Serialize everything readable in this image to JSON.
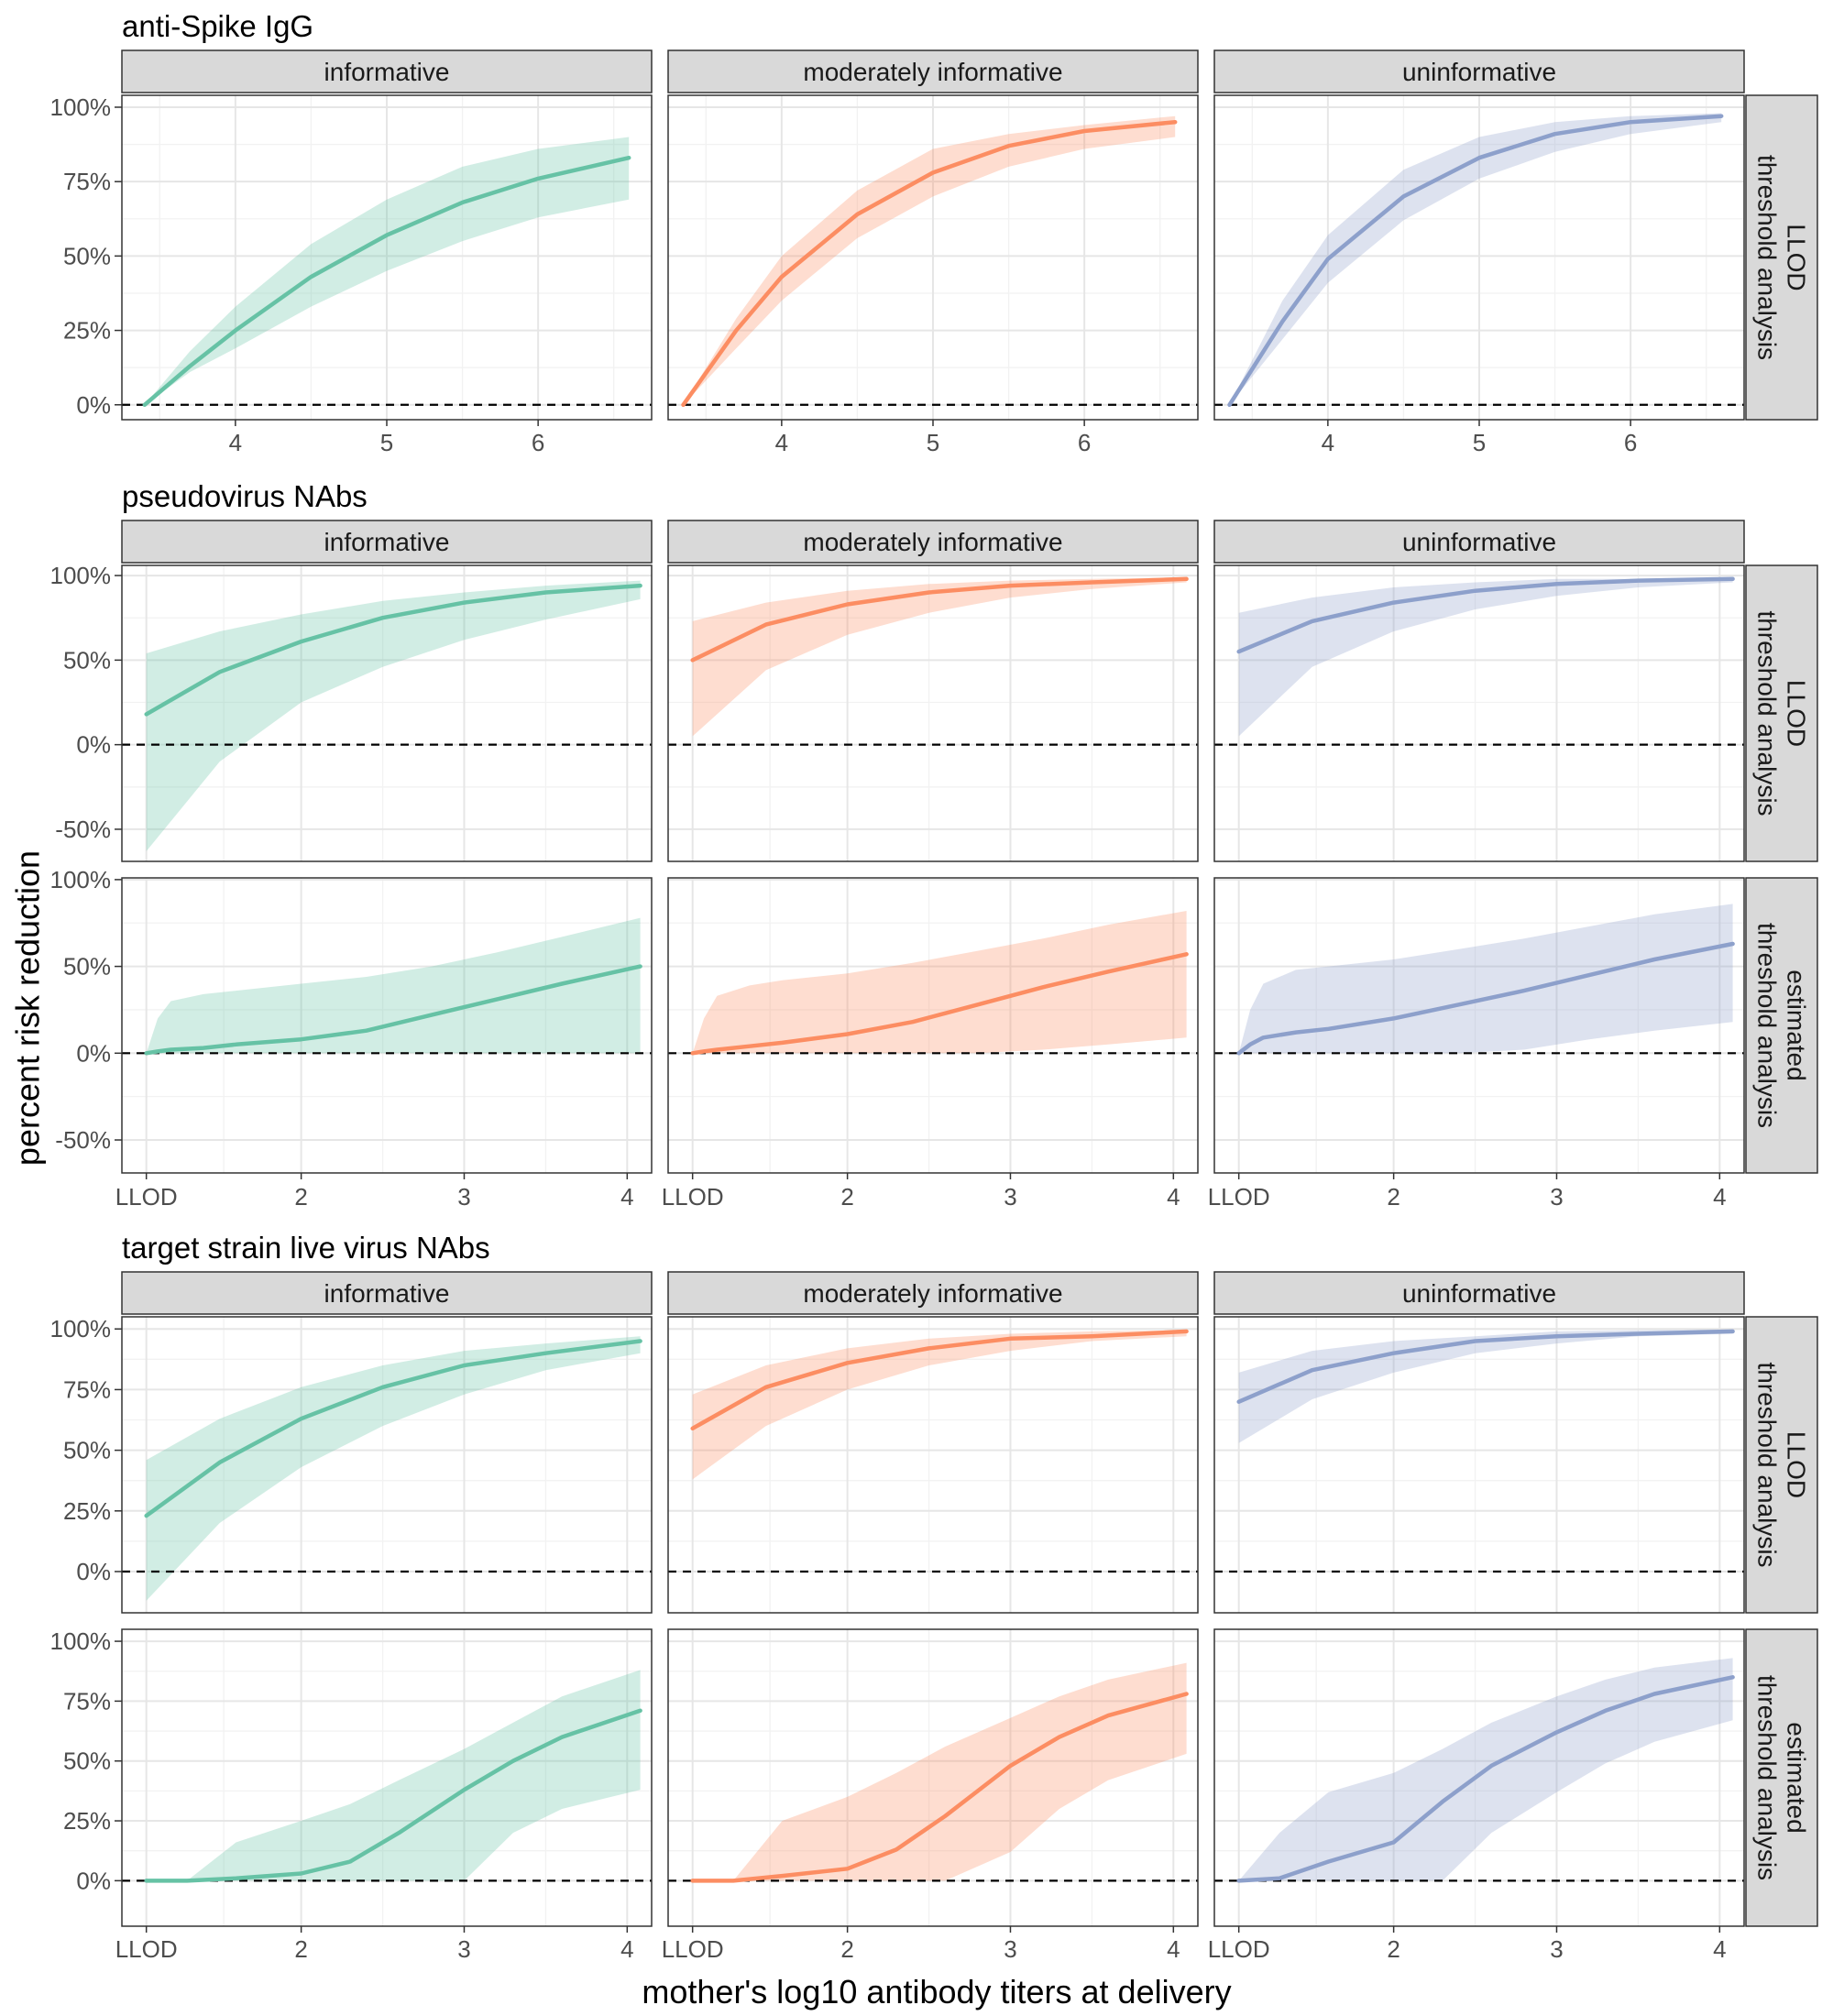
{
  "chart_data": {
    "type": "line",
    "xlabel": "mother's log10 antibody titers at delivery",
    "ylabel": "percent risk reduction",
    "column_labels": [
      "informative",
      "moderately informative",
      "uninformative"
    ],
    "colors": {
      "informative": "#66c2a5",
      "moderately informative": "#fc8d62",
      "uninformative": "#8da0cb"
    },
    "blocks": [
      {
        "title": "anti-Spike IgG",
        "xlim": [
          3.25,
          6.75
        ],
        "xticks": [
          {
            "v": 4,
            "label": "4"
          },
          {
            "v": 5,
            "label": "5"
          },
          {
            "v": 6,
            "label": "6"
          }
        ],
        "rows": [
          {
            "label": [
              "LLOD",
              "threshold analysis"
            ],
            "ylim": [
              -5,
              104
            ],
            "yticks": [
              {
                "v": 0,
                "label": "0%"
              },
              {
                "v": 25,
                "label": "25%"
              },
              {
                "v": 50,
                "label": "50%"
              },
              {
                "v": 75,
                "label": "75%"
              },
              {
                "v": 100,
                "label": "100%"
              }
            ],
            "panels": [
              {
                "x": [
                  3.4,
                  3.7,
                  4.0,
                  4.5,
                  5.0,
                  5.5,
                  6.0,
                  6.6
                ],
                "y": [
                  0,
                  13,
                  25,
                  43,
                  57,
                  68,
                  76,
                  83
                ],
                "lo": [
                  0,
                  11,
                  19,
                  33,
                  45,
                  55,
                  63,
                  69
                ],
                "hi": [
                  0,
                  18,
                  33,
                  54,
                  69,
                  80,
                  86,
                  90
                ]
              },
              {
                "x": [
                  3.35,
                  3.7,
                  4.0,
                  4.5,
                  5.0,
                  5.5,
                  6.0,
                  6.6
                ],
                "y": [
                  0,
                  25,
                  43,
                  64,
                  78,
                  87,
                  92,
                  95
                ],
                "lo": [
                  0,
                  19,
                  35,
                  56,
                  70,
                  80,
                  86,
                  90
                ],
                "hi": [
                  0,
                  29,
                  50,
                  72,
                  86,
                  91,
                  94,
                  97
                ]
              },
              {
                "x": [
                  3.35,
                  3.7,
                  4.0,
                  4.5,
                  5.0,
                  5.5,
                  6.0,
                  6.6
                ],
                "y": [
                  0,
                  28,
                  49,
                  70,
                  83,
                  91,
                  95,
                  97
                ],
                "lo": [
                  0,
                  22,
                  41,
                  62,
                  76,
                  85,
                  91,
                  95
                ],
                "hi": [
                  0,
                  35,
                  57,
                  79,
                  90,
                  95,
                  97,
                  98
                ]
              }
            ]
          }
        ]
      },
      {
        "title": "pseudovirus NAbs",
        "xlim": [
          0.9,
          4.15
        ],
        "xticks": [
          {
            "v": 1.05,
            "label": "LLOD"
          },
          {
            "v": 2,
            "label": "2"
          },
          {
            "v": 3,
            "label": "3"
          },
          {
            "v": 4,
            "label": "4"
          }
        ],
        "rows": [
          {
            "label": [
              "LLOD",
              "threshold analysis"
            ],
            "ylim": [
              -69,
              106
            ],
            "yticks": [
              {
                "v": -50,
                "label": "-50%"
              },
              {
                "v": 0,
                "label": "0%"
              },
              {
                "v": 50,
                "label": "50%"
              },
              {
                "v": 100,
                "label": "100%"
              }
            ],
            "panels": [
              {
                "x": [
                  1.05,
                  1.5,
                  2.0,
                  2.5,
                  3.0,
                  3.5,
                  4.08
                ],
                "y": [
                  18,
                  43,
                  61,
                  75,
                  84,
                  90,
                  94
                ],
                "lo": [
                  -63,
                  -10,
                  25,
                  46,
                  62,
                  74,
                  86
                ],
                "hi": [
                  54,
                  67,
                  77,
                  85,
                  90,
                  94,
                  97
                ]
              },
              {
                "x": [
                  1.05,
                  1.5,
                  2.0,
                  2.5,
                  3.0,
                  3.5,
                  4.08
                ],
                "y": [
                  50,
                  71,
                  83,
                  90,
                  94,
                  96,
                  98
                ],
                "lo": [
                  5,
                  44,
                  65,
                  78,
                  87,
                  92,
                  96
                ],
                "hi": [
                  73,
                  84,
                  91,
                  95,
                  97,
                  98,
                  99
                ]
              },
              {
                "x": [
                  1.05,
                  1.5,
                  2.0,
                  2.5,
                  3.0,
                  3.5,
                  4.08
                ],
                "y": [
                  55,
                  73,
                  84,
                  91,
                  95,
                  97,
                  98
                ],
                "lo": [
                  5,
                  46,
                  67,
                  80,
                  88,
                  93,
                  96
                ],
                "hi": [
                  78,
                  87,
                  93,
                  96,
                  98,
                  98,
                  99
                ]
              }
            ]
          },
          {
            "label": [
              "estimated",
              "threshold analysis"
            ],
            "ylim": [
              -69,
              101
            ],
            "yticks": [
              {
                "v": -50,
                "label": "-50%"
              },
              {
                "v": 0,
                "label": "0%"
              },
              {
                "v": 50,
                "label": "50%"
              },
              {
                "v": 100,
                "label": "100%"
              }
            ],
            "panels": [
              {
                "x": [
                  1.05,
                  1.12,
                  1.2,
                  1.4,
                  1.6,
                  2.0,
                  2.4,
                  2.8,
                  3.2,
                  3.6,
                  4.08
                ],
                "y": [
                  0,
                  1,
                  2,
                  3,
                  5,
                  8,
                  13,
                  22,
                  31,
                  40,
                  50
                ],
                "lo": [
                  0,
                  0,
                  0,
                  0,
                  0,
                  0,
                  0,
                  0,
                  0,
                  0,
                  0
                ],
                "hi": [
                  0,
                  20,
                  30,
                  34,
                  36,
                  40,
                  44,
                  50,
                  58,
                  67,
                  78
                ]
              },
              {
                "x": [
                  1.05,
                  1.12,
                  1.2,
                  1.4,
                  1.6,
                  2.0,
                  2.4,
                  2.8,
                  3.2,
                  3.6,
                  4.08
                ],
                "y": [
                  0,
                  1,
                  2,
                  4,
                  6,
                  11,
                  18,
                  28,
                  38,
                  47,
                  57
                ],
                "lo": [
                  0,
                  0,
                  0,
                  0,
                  0,
                  0,
                  0,
                  0,
                  2,
                  5,
                  9
                ],
                "hi": [
                  0,
                  20,
                  33,
                  39,
                  42,
                  46,
                  52,
                  59,
                  66,
                  74,
                  82
                ]
              },
              {
                "x": [
                  1.05,
                  1.12,
                  1.2,
                  1.4,
                  1.6,
                  2.0,
                  2.4,
                  2.8,
                  3.2,
                  3.6,
                  4.08
                ],
                "y": [
                  0,
                  5,
                  9,
                  12,
                  14,
                  20,
                  28,
                  36,
                  45,
                  54,
                  63
                ],
                "lo": [
                  0,
                  0,
                  0,
                  0,
                  0,
                  0,
                  0,
                  2,
                  8,
                  13,
                  18
                ],
                "hi": [
                  0,
                  25,
                  40,
                  48,
                  50,
                  54,
                  60,
                  66,
                  73,
                  80,
                  86
                ]
              }
            ]
          }
        ]
      },
      {
        "title": "target strain live virus NAbs",
        "xlim": [
          0.9,
          4.15
        ],
        "xticks": [
          {
            "v": 1.05,
            "label": "LLOD"
          },
          {
            "v": 2,
            "label": "2"
          },
          {
            "v": 3,
            "label": "3"
          },
          {
            "v": 4,
            "label": "4"
          }
        ],
        "rows": [
          {
            "label": [
              "LLOD",
              "threshold analysis"
            ],
            "ylim": [
              -17,
              105
            ],
            "yticks": [
              {
                "v": 0,
                "label": "0%"
              },
              {
                "v": 25,
                "label": "25%"
              },
              {
                "v": 50,
                "label": "50%"
              },
              {
                "v": 75,
                "label": "75%"
              },
              {
                "v": 100,
                "label": "100%"
              }
            ],
            "panels": [
              {
                "x": [
                  1.05,
                  1.5,
                  2.0,
                  2.5,
                  3.0,
                  3.5,
                  4.08
                ],
                "y": [
                  23,
                  45,
                  63,
                  76,
                  85,
                  90,
                  95
                ],
                "lo": [
                  -12,
                  20,
                  43,
                  60,
                  73,
                  83,
                  90
                ],
                "hi": [
                  46,
                  63,
                  76,
                  85,
                  91,
                  94,
                  97
                ]
              },
              {
                "x": [
                  1.05,
                  1.5,
                  2.0,
                  2.5,
                  3.0,
                  3.5,
                  4.08
                ],
                "y": [
                  59,
                  76,
                  86,
                  92,
                  96,
                  97,
                  99
                ],
                "lo": [
                  38,
                  60,
                  75,
                  85,
                  91,
                  95,
                  97
                ],
                "hi": [
                  73,
                  85,
                  92,
                  96,
                  98,
                  99,
                  99.5
                ]
              },
              {
                "x": [
                  1.05,
                  1.5,
                  2.0,
                  2.5,
                  3.0,
                  3.5,
                  4.08
                ],
                "y": [
                  70,
                  83,
                  90,
                  95,
                  97,
                  98,
                  99
                ],
                "lo": [
                  53,
                  71,
                  82,
                  90,
                  94,
                  97,
                  98
                ],
                "hi": [
                  82,
                  91,
                  95,
                  97,
                  99,
                  99.5,
                  99.8
                ]
              }
            ]
          },
          {
            "label": [
              "estimated",
              "threshold analysis"
            ],
            "ylim": [
              -19,
              105
            ],
            "yticks": [
              {
                "v": 0,
                "label": "0%"
              },
              {
                "v": 25,
                "label": "25%"
              },
              {
                "v": 50,
                "label": "50%"
              },
              {
                "v": 75,
                "label": "75%"
              },
              {
                "v": 100,
                "label": "100%"
              }
            ],
            "panels": [
              {
                "x": [
                  1.05,
                  1.3,
                  1.6,
                  2.0,
                  2.3,
                  2.6,
                  3.0,
                  3.3,
                  3.6,
                  4.08
                ],
                "y": [
                  0,
                  0,
                  1,
                  3,
                  8,
                  20,
                  38,
                  50,
                  60,
                  71
                ],
                "lo": [
                  0,
                  0,
                  0,
                  0,
                  0,
                  0,
                  0,
                  20,
                  30,
                  38
                ],
                "hi": [
                  0,
                  0,
                  16,
                  25,
                  32,
                  42,
                  55,
                  66,
                  77,
                  88
                ]
              },
              {
                "x": [
                  1.05,
                  1.3,
                  1.6,
                  2.0,
                  2.3,
                  2.6,
                  3.0,
                  3.3,
                  3.6,
                  4.08
                ],
                "y": [
                  0,
                  0,
                  2,
                  5,
                  13,
                  27,
                  48,
                  60,
                  69,
                  78
                ],
                "lo": [
                  0,
                  0,
                  0,
                  0,
                  0,
                  0,
                  12,
                  30,
                  42,
                  53
                ],
                "hi": [
                  0,
                  0,
                  25,
                  35,
                  45,
                  56,
                  68,
                  77,
                  84,
                  91
                ]
              },
              {
                "x": [
                  1.05,
                  1.3,
                  1.6,
                  2.0,
                  2.3,
                  2.6,
                  3.0,
                  3.3,
                  3.6,
                  4.08
                ],
                "y": [
                  0,
                  1,
                  8,
                  16,
                  33,
                  48,
                  62,
                  71,
                  78,
                  85
                ],
                "lo": [
                  0,
                  0,
                  0,
                  0,
                  0,
                  20,
                  37,
                  49,
                  58,
                  67
                ],
                "hi": [
                  0,
                  20,
                  37,
                  45,
                  55,
                  66,
                  77,
                  84,
                  89,
                  93
                ]
              }
            ]
          }
        ]
      }
    ]
  }
}
